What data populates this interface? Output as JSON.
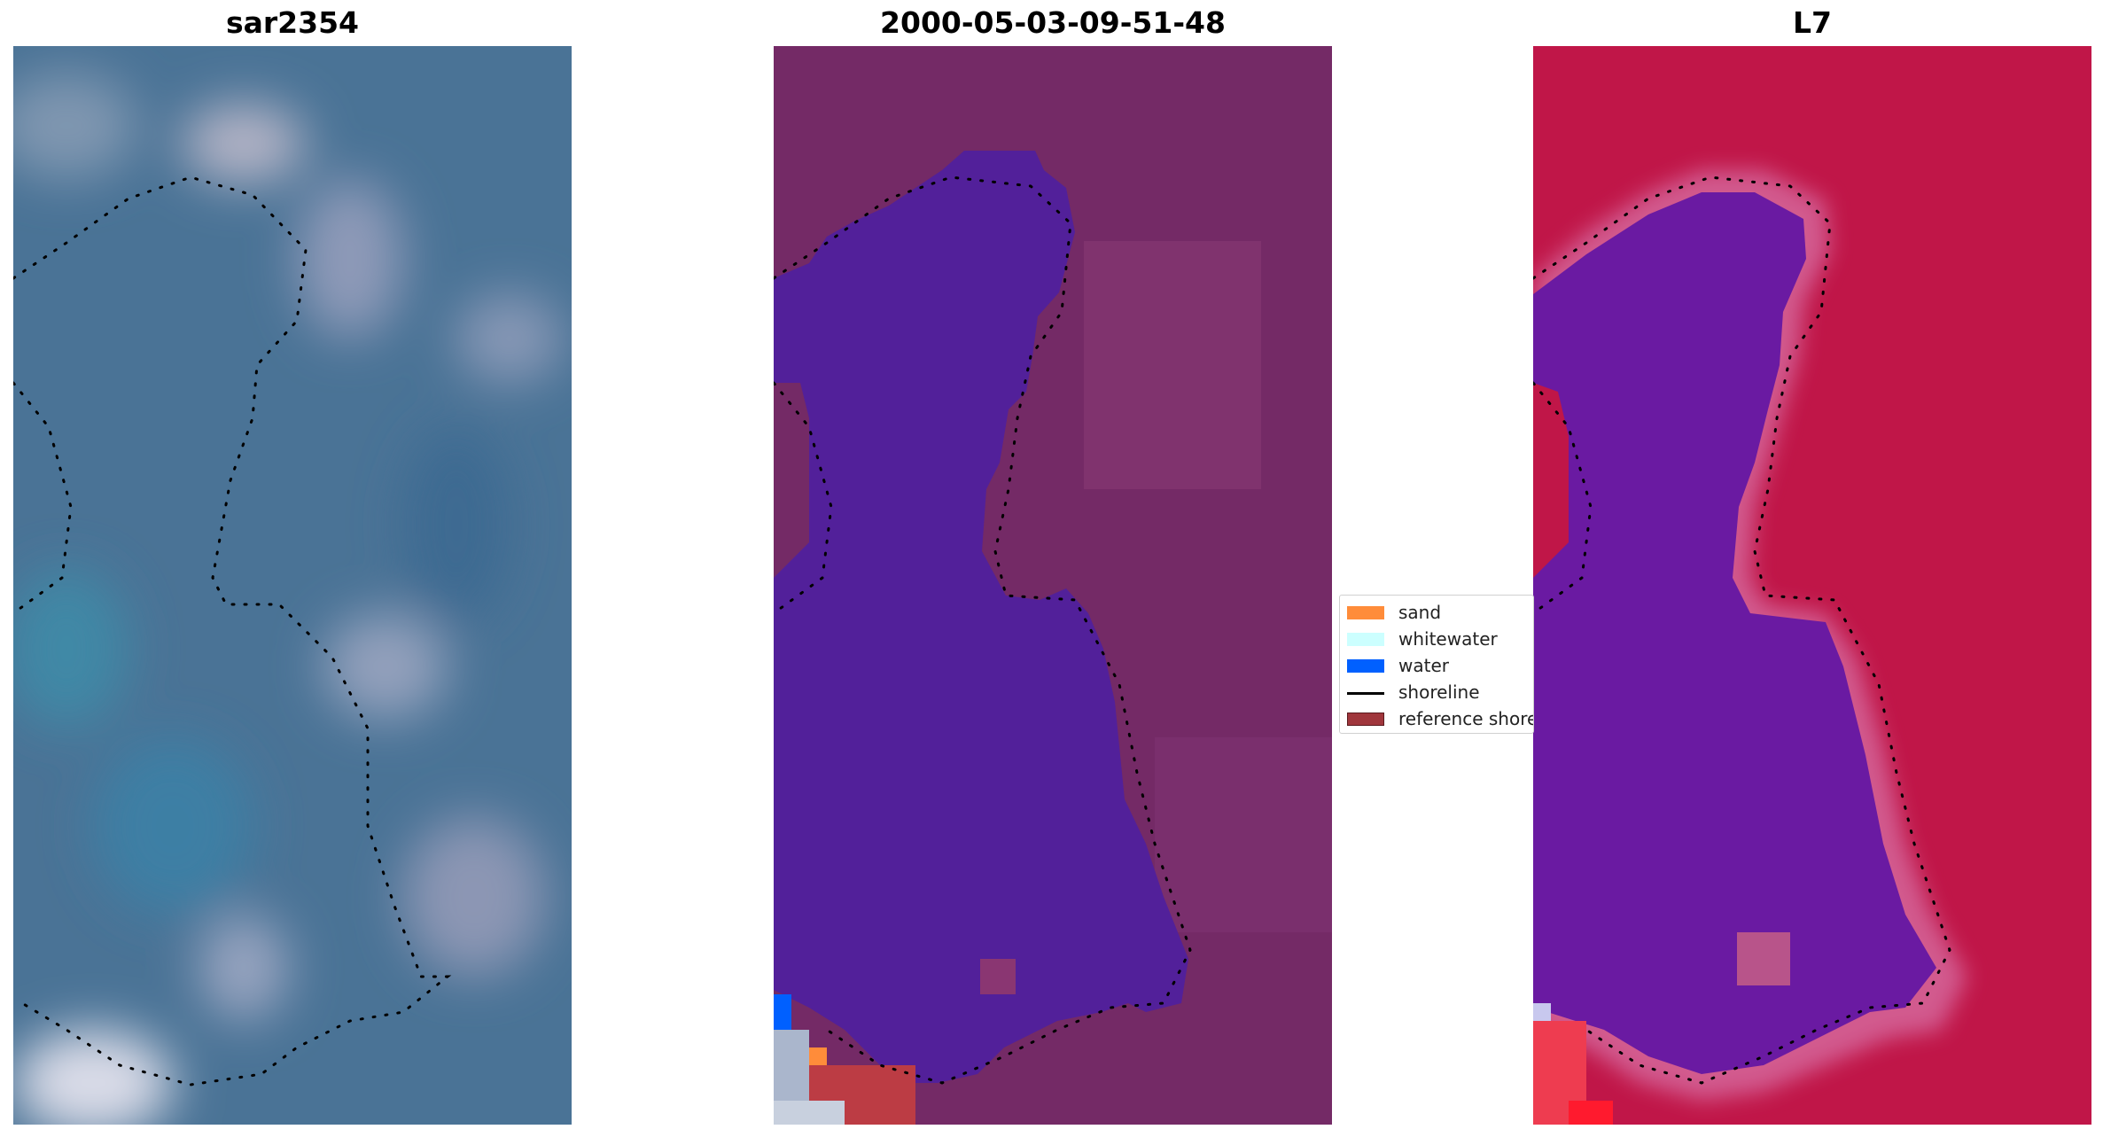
{
  "panels": [
    {
      "title": "sar2354"
    },
    {
      "title": "2000-05-03-09-51-48"
    },
    {
      "title": "L7"
    }
  ],
  "legend": {
    "items": [
      {
        "label": "sand",
        "kind": "patch",
        "color": "#ff8c3a"
      },
      {
        "label": "whitewater",
        "kind": "patch",
        "color": "#ccffff"
      },
      {
        "label": "water",
        "kind": "patch",
        "color": "#0060ff"
      },
      {
        "label": "shoreline",
        "kind": "line",
        "color": "#000000"
      },
      {
        "label": "reference shoreline",
        "kind": "patch",
        "color": "#a0363c"
      }
    ]
  },
  "colors": {
    "rgb_background": "#4a7396",
    "classified_land": "#742a66",
    "classified_water": "#52209a",
    "index_land": "#c01648",
    "index_water": "#6a1aa2"
  }
}
